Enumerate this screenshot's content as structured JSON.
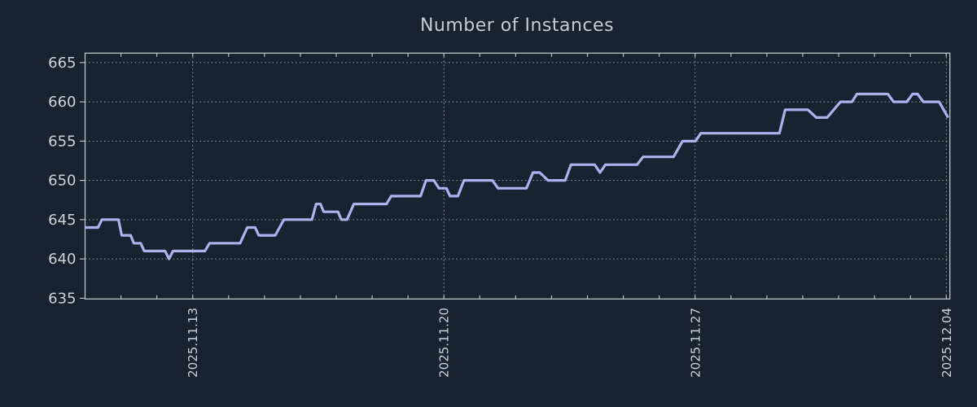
{
  "colors": {
    "background": "#1a2231",
    "frame": "#bcc2ca",
    "grid": "#9aa1aa",
    "title": "#c7cbd1",
    "tick_label": "#ced2d8",
    "line": "#adb2ef"
  },
  "chart_data": {
    "type": "line",
    "title": "Number of Instances",
    "xlabel": "",
    "ylabel": "",
    "legend": "none",
    "grid": "dotted",
    "x_axis": {
      "range_days": [
        0,
        24.1
      ],
      "major_tick_positions_days": [
        3,
        10,
        17,
        24
      ],
      "tick_labels": [
        "2025.11.13",
        "2025.11.20",
        "2025.11.27",
        "2025.12.04"
      ],
      "minor_tick_interval_days": 1,
      "label_rotation_deg": -90
    },
    "y_axis": {
      "range": [
        634.9,
        666.2
      ],
      "tick_values": [
        635,
        640,
        645,
        650,
        655,
        660,
        665
      ],
      "tick_labels": [
        "635",
        "640",
        "645",
        "650",
        "655",
        "660",
        "665"
      ]
    },
    "series": [
      {
        "color": "#adb2ef",
        "points_day_value": [
          [
            0,
            644
          ],
          [
            0.36,
            644
          ],
          [
            0.47,
            645
          ],
          [
            0.93,
            645
          ],
          [
            1.02,
            643
          ],
          [
            1.27,
            643
          ],
          [
            1.36,
            642
          ],
          [
            1.55,
            642
          ],
          [
            1.65,
            641
          ],
          [
            2.23,
            641
          ],
          [
            2.34,
            640
          ],
          [
            2.45,
            641
          ],
          [
            3.34,
            641
          ],
          [
            3.47,
            642
          ],
          [
            4.32,
            642
          ],
          [
            4.52,
            644
          ],
          [
            4.74,
            644
          ],
          [
            4.84,
            643
          ],
          [
            5.3,
            643
          ],
          [
            5.54,
            645
          ],
          [
            6.32,
            645
          ],
          [
            6.44,
            647
          ],
          [
            6.56,
            647
          ],
          [
            6.65,
            646
          ],
          [
            7.05,
            646
          ],
          [
            7.14,
            645
          ],
          [
            7.3,
            645
          ],
          [
            7.49,
            647
          ],
          [
            8.4,
            647
          ],
          [
            8.53,
            648
          ],
          [
            9.35,
            648
          ],
          [
            9.5,
            650
          ],
          [
            9.72,
            650
          ],
          [
            9.86,
            649
          ],
          [
            10.07,
            649
          ],
          [
            10.17,
            648
          ],
          [
            10.39,
            648
          ],
          [
            10.56,
            650
          ],
          [
            11.35,
            650
          ],
          [
            11.51,
            649
          ],
          [
            12.3,
            649
          ],
          [
            12.48,
            651
          ],
          [
            12.67,
            651
          ],
          [
            12.9,
            650
          ],
          [
            13.38,
            650
          ],
          [
            13.54,
            652
          ],
          [
            14.2,
            652
          ],
          [
            14.35,
            651
          ],
          [
            14.5,
            652
          ],
          [
            15.38,
            652
          ],
          [
            15.55,
            653
          ],
          [
            16.4,
            653
          ],
          [
            16.65,
            655
          ],
          [
            17.01,
            655
          ],
          [
            17.16,
            656
          ],
          [
            19.35,
            656
          ],
          [
            19.51,
            659
          ],
          [
            20.14,
            659
          ],
          [
            20.38,
            658
          ],
          [
            20.68,
            658
          ],
          [
            21.05,
            660
          ],
          [
            21.37,
            660
          ],
          [
            21.51,
            661
          ],
          [
            22.37,
            661
          ],
          [
            22.53,
            660
          ],
          [
            22.9,
            660
          ],
          [
            23.06,
            661
          ],
          [
            23.2,
            661
          ],
          [
            23.36,
            660
          ],
          [
            23.8,
            660
          ],
          [
            24.05,
            658
          ]
        ]
      }
    ]
  }
}
